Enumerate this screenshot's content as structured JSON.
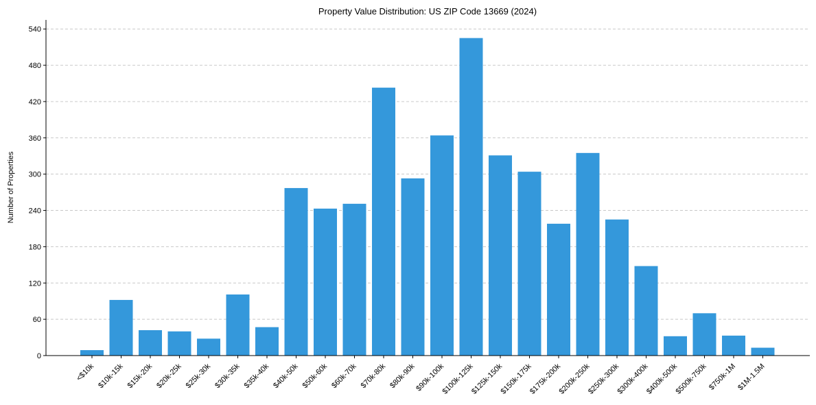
{
  "chart_data": {
    "type": "bar",
    "title": "Property Value Distribution: US ZIP Code 13669 (2024)",
    "xlabel": "",
    "ylabel": "Number of Properties",
    "ylim": [
      0,
      555
    ],
    "yticks": [
      0,
      60,
      120,
      180,
      240,
      300,
      360,
      420,
      480,
      540
    ],
    "grid": "y-dashed",
    "bar_color": "#3498db",
    "categories": [
      "<$10k",
      "$10k-15k",
      "$15k-20k",
      "$20k-25k",
      "$25k-30k",
      "$30k-35k",
      "$35k-40k",
      "$40k-50k",
      "$50k-60k",
      "$60k-70k",
      "$70k-80k",
      "$80k-90k",
      "$90k-100k",
      "$100k-125k",
      "$125k-150k",
      "$150k-175k",
      "$175k-200k",
      "$200k-250k",
      "$250k-300k",
      "$300k-400k",
      "$400k-500k",
      "$500k-750k",
      "$750k-1M",
      "$1M-1.5M"
    ],
    "values": [
      9,
      92,
      42,
      40,
      28,
      101,
      47,
      277,
      243,
      251,
      443,
      293,
      364,
      525,
      331,
      304,
      218,
      335,
      225,
      148,
      32,
      70,
      33,
      13
    ]
  }
}
